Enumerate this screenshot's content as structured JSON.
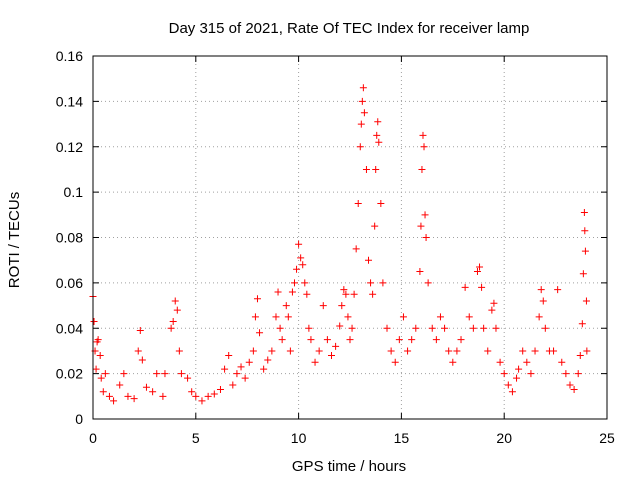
{
  "chart_data": {
    "type": "scatter",
    "title": "Day 315 of 2021, Rate Of TEC Index for receiver lamp",
    "xlabel": "GPS time / hours",
    "ylabel": "ROTI / TECUs",
    "xlim": [
      0,
      25
    ],
    "ylim": [
      0,
      0.16
    ],
    "xticks": [
      0,
      5,
      10,
      15,
      20,
      25
    ],
    "xtick_labels": [
      "0",
      "5",
      "10",
      "15",
      "20",
      "25"
    ],
    "yticks": [
      0,
      0.02,
      0.04,
      0.06,
      0.08,
      0.1,
      0.12,
      0.14,
      0.16
    ],
    "ytick_labels": [
      "0",
      "0.02",
      "0.04",
      "0.06",
      "0.08",
      "0.1",
      "0.12",
      "0.14",
      "0.16"
    ],
    "grid": true,
    "marker": "plus",
    "color": "#ff0000",
    "series": [
      {
        "name": "ROTI",
        "points": [
          [
            0.0,
            0.054
          ],
          [
            0.05,
            0.043
          ],
          [
            0.1,
            0.03
          ],
          [
            0.15,
            0.022
          ],
          [
            0.2,
            0.034
          ],
          [
            0.25,
            0.035
          ],
          [
            0.35,
            0.028
          ],
          [
            0.4,
            0.018
          ],
          [
            0.5,
            0.012
          ],
          [
            0.6,
            0.02
          ],
          [
            0.8,
            0.01
          ],
          [
            1.0,
            0.008
          ],
          [
            1.3,
            0.015
          ],
          [
            1.5,
            0.02
          ],
          [
            1.7,
            0.01
          ],
          [
            2.0,
            0.009
          ],
          [
            2.2,
            0.03
          ],
          [
            2.3,
            0.039
          ],
          [
            2.4,
            0.026
          ],
          [
            2.6,
            0.014
          ],
          [
            2.9,
            0.012
          ],
          [
            3.1,
            0.02
          ],
          [
            3.4,
            0.01
          ],
          [
            3.5,
            0.02
          ],
          [
            3.8,
            0.04
          ],
          [
            3.9,
            0.043
          ],
          [
            4.0,
            0.052
          ],
          [
            4.1,
            0.048
          ],
          [
            4.2,
            0.03
          ],
          [
            4.3,
            0.02
          ],
          [
            4.6,
            0.018
          ],
          [
            4.8,
            0.012
          ],
          [
            5.0,
            0.01
          ],
          [
            5.3,
            0.008
          ],
          [
            5.6,
            0.01
          ],
          [
            5.9,
            0.011
          ],
          [
            6.2,
            0.013
          ],
          [
            6.4,
            0.022
          ],
          [
            6.6,
            0.028
          ],
          [
            6.8,
            0.015
          ],
          [
            7.0,
            0.02
          ],
          [
            7.2,
            0.023
          ],
          [
            7.4,
            0.018
          ],
          [
            7.6,
            0.025
          ],
          [
            7.8,
            0.03
          ],
          [
            7.9,
            0.045
          ],
          [
            8.0,
            0.053
          ],
          [
            8.1,
            0.038
          ],
          [
            8.3,
            0.022
          ],
          [
            8.5,
            0.026
          ],
          [
            8.7,
            0.03
          ],
          [
            8.9,
            0.045
          ],
          [
            9.0,
            0.056
          ],
          [
            9.1,
            0.04
          ],
          [
            9.2,
            0.035
          ],
          [
            9.4,
            0.05
          ],
          [
            9.5,
            0.045
          ],
          [
            9.6,
            0.03
          ],
          [
            9.7,
            0.056
          ],
          [
            9.8,
            0.06
          ],
          [
            9.9,
            0.066
          ],
          [
            10.0,
            0.077
          ],
          [
            10.1,
            0.071
          ],
          [
            10.2,
            0.068
          ],
          [
            10.3,
            0.06
          ],
          [
            10.4,
            0.055
          ],
          [
            10.5,
            0.04
          ],
          [
            10.6,
            0.035
          ],
          [
            10.8,
            0.025
          ],
          [
            11.0,
            0.03
          ],
          [
            11.2,
            0.05
          ],
          [
            11.4,
            0.035
          ],
          [
            11.6,
            0.028
          ],
          [
            11.8,
            0.032
          ],
          [
            12.0,
            0.041
          ],
          [
            12.1,
            0.05
          ],
          [
            12.2,
            0.057
          ],
          [
            12.3,
            0.055
          ],
          [
            12.4,
            0.045
          ],
          [
            12.5,
            0.035
          ],
          [
            12.6,
            0.04
          ],
          [
            12.7,
            0.055
          ],
          [
            12.8,
            0.075
          ],
          [
            12.9,
            0.095
          ],
          [
            13.0,
            0.12
          ],
          [
            13.05,
            0.13
          ],
          [
            13.1,
            0.14
          ],
          [
            13.15,
            0.146
          ],
          [
            13.2,
            0.135
          ],
          [
            13.3,
            0.11
          ],
          [
            13.4,
            0.07
          ],
          [
            13.5,
            0.06
          ],
          [
            13.6,
            0.055
          ],
          [
            13.7,
            0.085
          ],
          [
            13.75,
            0.11
          ],
          [
            13.8,
            0.125
          ],
          [
            13.85,
            0.131
          ],
          [
            13.9,
            0.122
          ],
          [
            14.0,
            0.095
          ],
          [
            14.1,
            0.06
          ],
          [
            14.3,
            0.04
          ],
          [
            14.5,
            0.03
          ],
          [
            14.7,
            0.025
          ],
          [
            14.9,
            0.035
          ],
          [
            15.1,
            0.045
          ],
          [
            15.3,
            0.03
          ],
          [
            15.5,
            0.035
          ],
          [
            15.7,
            0.04
          ],
          [
            15.9,
            0.065
          ],
          [
            15.95,
            0.085
          ],
          [
            16.0,
            0.11
          ],
          [
            16.05,
            0.125
          ],
          [
            16.1,
            0.12
          ],
          [
            16.15,
            0.09
          ],
          [
            16.2,
            0.08
          ],
          [
            16.3,
            0.06
          ],
          [
            16.5,
            0.04
          ],
          [
            16.7,
            0.035
          ],
          [
            16.9,
            0.045
          ],
          [
            17.1,
            0.04
          ],
          [
            17.3,
            0.03
          ],
          [
            17.5,
            0.025
          ],
          [
            17.7,
            0.03
          ],
          [
            17.9,
            0.035
          ],
          [
            18.1,
            0.058
          ],
          [
            18.3,
            0.045
          ],
          [
            18.5,
            0.04
          ],
          [
            18.7,
            0.065
          ],
          [
            18.8,
            0.067
          ],
          [
            18.9,
            0.058
          ],
          [
            19.0,
            0.04
          ],
          [
            19.2,
            0.03
          ],
          [
            19.4,
            0.048
          ],
          [
            19.5,
            0.051
          ],
          [
            19.6,
            0.04
          ],
          [
            19.8,
            0.025
          ],
          [
            20.0,
            0.02
          ],
          [
            20.2,
            0.015
          ],
          [
            20.4,
            0.012
          ],
          [
            20.6,
            0.018
          ],
          [
            20.7,
            0.022
          ],
          [
            20.9,
            0.03
          ],
          [
            21.1,
            0.025
          ],
          [
            21.3,
            0.02
          ],
          [
            21.5,
            0.03
          ],
          [
            21.7,
            0.045
          ],
          [
            21.8,
            0.057
          ],
          [
            21.9,
            0.052
          ],
          [
            22.0,
            0.04
          ],
          [
            22.2,
            0.03
          ],
          [
            22.4,
            0.03
          ],
          [
            22.6,
            0.057
          ],
          [
            22.8,
            0.025
          ],
          [
            23.0,
            0.02
          ],
          [
            23.2,
            0.015
          ],
          [
            23.4,
            0.013
          ],
          [
            23.6,
            0.02
          ],
          [
            23.7,
            0.028
          ],
          [
            23.8,
            0.042
          ],
          [
            23.85,
            0.064
          ],
          [
            23.9,
            0.091
          ],
          [
            23.92,
            0.083
          ],
          [
            23.95,
            0.074
          ],
          [
            24.0,
            0.052
          ],
          [
            24.02,
            0.03
          ]
        ]
      }
    ]
  }
}
